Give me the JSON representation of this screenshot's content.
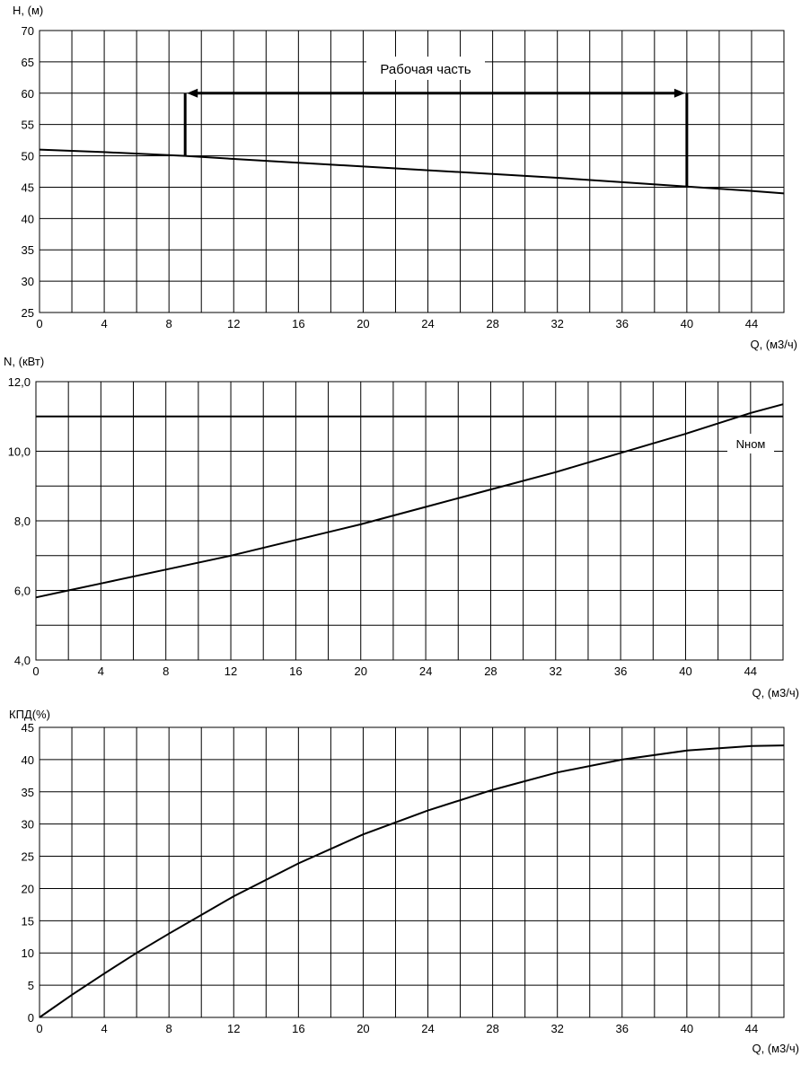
{
  "chart_data": [
    {
      "type": "line",
      "ylabel": "H, (м)",
      "xlabel": "Q, (м3/ч)",
      "xlim": [
        0,
        46
      ],
      "ylim": [
        25,
        70
      ],
      "xticks": [
        0,
        4,
        8,
        12,
        16,
        20,
        24,
        28,
        32,
        36,
        40,
        44
      ],
      "yticks": [
        25,
        30,
        35,
        40,
        45,
        50,
        55,
        60,
        65,
        70
      ],
      "grid": true,
      "series": [
        {
          "x": [
            0,
            4,
            9,
            12,
            16,
            20,
            24,
            28,
            32,
            36,
            40,
            44,
            46
          ],
          "y": [
            51.0,
            50.6,
            50.0,
            49.5,
            48.9,
            48.3,
            47.7,
            47.1,
            46.5,
            45.8,
            45.1,
            44.4,
            44.0
          ]
        }
      ],
      "annotation": {
        "text": "Рабочая часть",
        "q_start": 9,
        "q_end": 40,
        "h_level": 60
      }
    },
    {
      "type": "line",
      "ylabel": "N, (кВт)",
      "xlabel": "Q, (м3/ч)",
      "xlim": [
        0,
        46
      ],
      "ylim": [
        4,
        12
      ],
      "xticks": [
        0,
        4,
        8,
        12,
        16,
        20,
        24,
        28,
        32,
        36,
        40,
        44
      ],
      "yticks": [
        "4,0",
        "6,0",
        "8,0",
        "10,0",
        "12,0"
      ],
      "grid": true,
      "series": [
        {
          "x": [
            0,
            2,
            4,
            8,
            12,
            16,
            20,
            24,
            28,
            32,
            36,
            40,
            44,
            46
          ],
          "y": [
            5.8,
            6.0,
            6.2,
            6.6,
            7.0,
            7.45,
            7.9,
            8.4,
            8.9,
            9.4,
            9.95,
            10.5,
            11.1,
            11.35
          ]
        }
      ],
      "nominal": {
        "label": "Nном",
        "value": 11.0
      }
    },
    {
      "type": "line",
      "ylabel": "КПД(%)",
      "xlabel": "Q, (м3/ч)",
      "xlim": [
        0,
        46
      ],
      "ylim": [
        0,
        45
      ],
      "xticks": [
        0,
        4,
        8,
        12,
        16,
        20,
        24,
        28,
        32,
        36,
        40,
        44
      ],
      "yticks": [
        0,
        5,
        10,
        15,
        20,
        25,
        30,
        35,
        40,
        45
      ],
      "grid": true,
      "series": [
        {
          "x": [
            0,
            2,
            4,
            6,
            8,
            12,
            16,
            20,
            24,
            28,
            32,
            36,
            40,
            44,
            46
          ],
          "y": [
            0,
            3.5,
            6.8,
            10.0,
            13.0,
            18.8,
            23.9,
            28.4,
            32.1,
            35.3,
            38.0,
            40.0,
            41.4,
            42.1,
            42.2
          ]
        }
      ]
    }
  ]
}
